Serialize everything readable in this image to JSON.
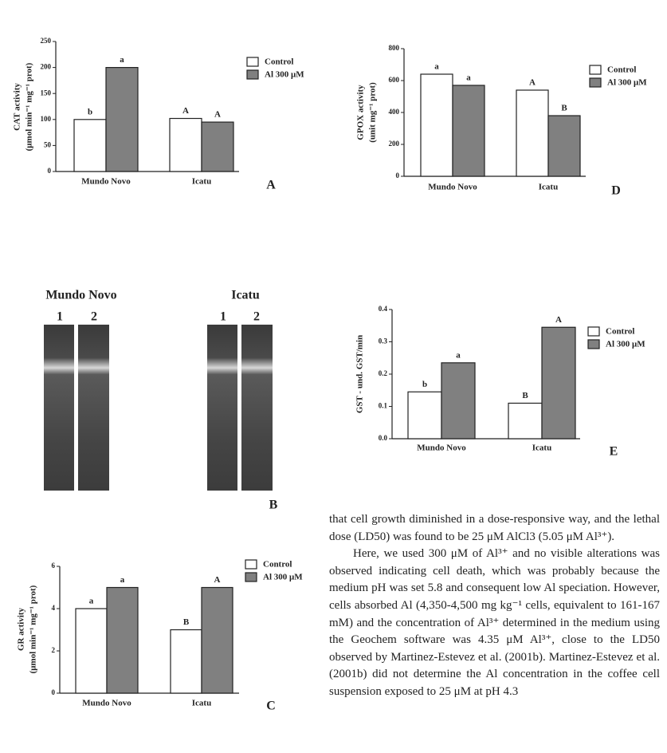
{
  "chart_data": [
    {
      "type": "bar",
      "panel": "A",
      "y_label": [
        "CAT activity",
        "(μmol min⁻¹ mg⁻¹ prot)"
      ],
      "categories": [
        "Mundo Novo",
        "Icatu"
      ],
      "series": [
        {
          "name": "Control",
          "color": "#ffffff",
          "values": [
            100,
            102
          ],
          "significance": [
            "b",
            "A"
          ]
        },
        {
          "name": "Al 300  μM",
          "color": "#808080",
          "values": [
            200,
            95
          ],
          "significance": [
            "a",
            "A"
          ]
        }
      ],
      "ylim": [
        0,
        250
      ],
      "yticks": [
        0,
        50,
        100,
        150,
        200,
        250
      ],
      "legend": "right"
    },
    {
      "type": "bar",
      "panel": "D",
      "y_label": [
        "GPOX activity",
        "(unit mg⁻¹ prot)"
      ],
      "categories": [
        "Mundo Novo",
        "Icatu"
      ],
      "series": [
        {
          "name": "Control",
          "color": "#ffffff",
          "values": [
            640,
            540
          ],
          "significance": [
            "a",
            "A"
          ]
        },
        {
          "name": "Al 300  μM",
          "color": "#808080",
          "values": [
            570,
            380
          ],
          "significance": [
            "a",
            "B"
          ]
        }
      ],
      "ylim": [
        0,
        800
      ],
      "yticks": [
        0,
        200,
        400,
        600,
        800
      ],
      "legend": "right"
    },
    {
      "type": "bar",
      "panel": "E",
      "y_label": [
        "GST - und. GST/min"
      ],
      "categories": [
        "Mundo Novo",
        "Icatu"
      ],
      "series": [
        {
          "name": "Control",
          "color": "#ffffff",
          "values": [
            0.145,
            0.11
          ],
          "significance": [
            "b",
            "B"
          ]
        },
        {
          "name": "Al 300  μM",
          "color": "#808080",
          "values": [
            0.235,
            0.345
          ],
          "significance": [
            "a",
            "A"
          ]
        }
      ],
      "ylim": [
        0,
        0.4
      ],
      "yticks": [
        {
          "value": 0,
          "label": "0.0"
        },
        0.1,
        0.2,
        0.3,
        0.4
      ],
      "legend": "right"
    },
    {
      "type": "bar",
      "panel": "C",
      "y_label": [
        "GR activity",
        "(μmol min⁻¹ mg⁻¹ prot)"
      ],
      "categories": [
        "Mundo Novo",
        "Icatu"
      ],
      "series": [
        {
          "name": "Control",
          "color": "#ffffff",
          "values": [
            4,
            3
          ],
          "significance": [
            "a",
            "B"
          ]
        },
        {
          "name": "Al 300  μM",
          "color": "#808080",
          "values": [
            5,
            5
          ],
          "significance": [
            "a",
            "A"
          ]
        }
      ],
      "ylim": [
        0,
        6
      ],
      "yticks": [
        0,
        2,
        4,
        6
      ],
      "legend": "right"
    }
  ],
  "gel": {
    "panel": "B",
    "groups": [
      {
        "title": "Mundo Novo",
        "lanes": [
          "1",
          "2"
        ]
      },
      {
        "title": "Icatu",
        "lanes": [
          "1",
          "2"
        ]
      }
    ]
  },
  "text": {
    "paragraphs": [
      "that cell growth diminished in a dose-responsive way, and the lethal dose (LD50) was found to be 25 μM AlCl3 (5.05 μM Al³⁺).",
      "Here, we used 300 μM of Al³⁺ and no visible alterations was observed indicating cell death, which was probably because the medium pH was set 5.8 and consequent low Al speciation. However, cells absorbed Al (4,350-4,500 mg kg⁻¹ cells, equivalent to 161-167 mM) and the concentration of Al³⁺ determined in the medium using the Geochem software was 4.35 μM Al³⁺, close to the LD50 observed by Martinez-Estevez et al. (2001b). Martinez-Estevez et al. (2001b) did not determine the Al concentration in the coffee cell suspension exposed to 25 μM at pH 4.3"
    ]
  }
}
